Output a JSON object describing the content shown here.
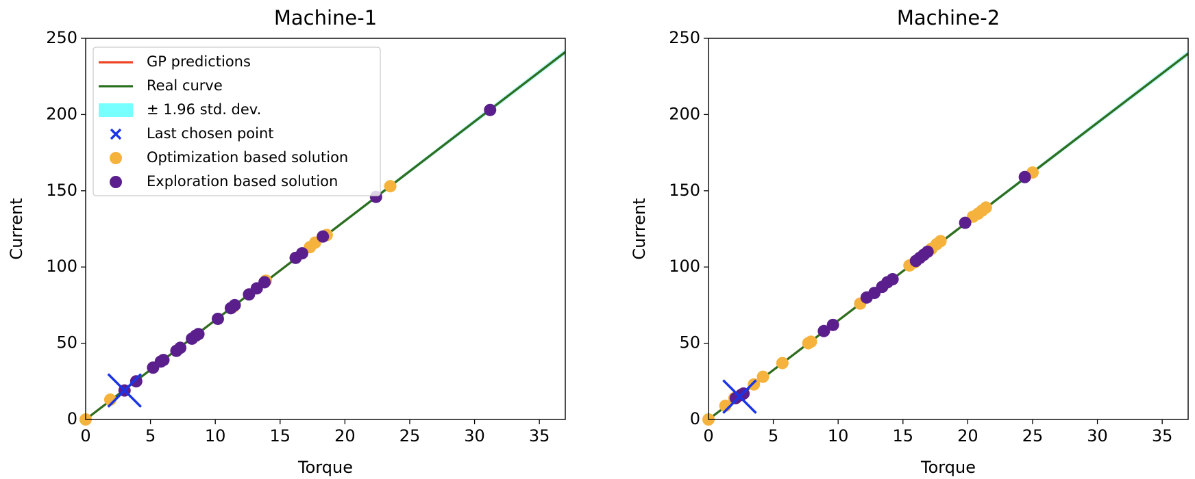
{
  "chart_data": [
    {
      "type": "scatter",
      "title": "Machine-1",
      "x_label": "Torque",
      "y_label": "Current",
      "xlim": [
        0,
        37
      ],
      "ylim": [
        0,
        250
      ],
      "xticks": [
        0,
        5,
        10,
        15,
        20,
        25,
        30,
        35
      ],
      "yticks": [
        0,
        50,
        100,
        150,
        200,
        250
      ],
      "legend": "upper left",
      "series": [
        {
          "name": "GP predictions",
          "kind": "line",
          "color": "#ee4422",
          "x": [
            0,
            37
          ],
          "values": [
            0,
            241
          ]
        },
        {
          "name": "Real curve",
          "kind": "line",
          "color": "#2a7020",
          "x": [
            0,
            37
          ],
          "values": [
            0,
            241
          ]
        },
        {
          "name": "± 1.96 std. dev.",
          "kind": "band",
          "color": "#77ffff",
          "x": [
            0,
            37
          ],
          "lower": [
            0,
            239
          ],
          "upper": [
            0,
            243
          ]
        },
        {
          "name": "Last chosen point",
          "kind": "cross",
          "color": "#1a35e8",
          "x": [
            3.0
          ],
          "values": [
            19
          ]
        },
        {
          "name": "Optimization based solution",
          "kind": "points",
          "color": "#f5b23c",
          "x": [
            0,
            1.9,
            11.4,
            13.9,
            17.3,
            17.7,
            18.6,
            23.5
          ],
          "values": [
            0,
            13,
            74,
            91,
            113,
            116,
            121,
            153
          ]
        },
        {
          "name": "Exploration based solution",
          "kind": "points",
          "color": "#5a1f8c",
          "x": [
            3.0,
            3.9,
            5.2,
            5.8,
            6.0,
            7.0,
            7.3,
            8.2,
            8.5,
            8.7,
            10.2,
            11.2,
            11.5,
            12.6,
            13.2,
            13.8,
            16.2,
            16.7,
            18.3,
            22.4,
            31.2
          ],
          "values": [
            19,
            25,
            34,
            38,
            39,
            45,
            47,
            53,
            55,
            56,
            66,
            73,
            75,
            82,
            86,
            90,
            106,
            109,
            120,
            146,
            203
          ]
        }
      ]
    },
    {
      "type": "scatter",
      "title": "Machine-2",
      "x_label": "Torque",
      "y_label": "Current",
      "xlim": [
        0,
        37
      ],
      "ylim": [
        0,
        250
      ],
      "xticks": [
        0,
        5,
        10,
        15,
        20,
        25,
        30,
        35
      ],
      "yticks": [
        0,
        50,
        100,
        150,
        200,
        250
      ],
      "series": [
        {
          "kind": "line",
          "color": "#ee4422",
          "x": [
            0,
            37
          ],
          "values": [
            0,
            240
          ]
        },
        {
          "kind": "line",
          "color": "#2a7020",
          "x": [
            0,
            37
          ],
          "values": [
            0,
            240
          ]
        },
        {
          "kind": "band",
          "color": "#77ffff",
          "x": [
            0,
            37
          ],
          "lower": [
            0,
            238
          ],
          "upper": [
            0,
            242
          ]
        },
        {
          "kind": "cross",
          "color": "#1a35e8",
          "x": [
            2.4
          ],
          "values": [
            15
          ]
        },
        {
          "kind": "points",
          "color": "#f5b23c",
          "x": [
            0,
            1.3,
            2.0,
            3.5,
            4.2,
            5.7,
            7.7,
            7.9,
            11.7,
            15.5,
            15.9,
            17.2,
            17.6,
            17.9,
            20.4,
            20.8,
            21.1,
            21.4,
            25.0
          ],
          "values": [
            0,
            9,
            14,
            23,
            28,
            37,
            50,
            51,
            76,
            101,
            103,
            112,
            115,
            117,
            133,
            135,
            137,
            139,
            162
          ]
        },
        {
          "kind": "points",
          "color": "#5a1f8c",
          "x": [
            2.1,
            2.5,
            2.7,
            8.9,
            9.6,
            12.2,
            12.8,
            13.4,
            13.8,
            14.2,
            16.0,
            16.3,
            16.6,
            16.9,
            19.8,
            24.4
          ],
          "values": [
            14,
            16,
            17,
            58,
            62,
            80,
            83,
            87,
            90,
            92,
            104,
            106,
            108,
            110,
            129,
            159
          ]
        }
      ]
    }
  ]
}
